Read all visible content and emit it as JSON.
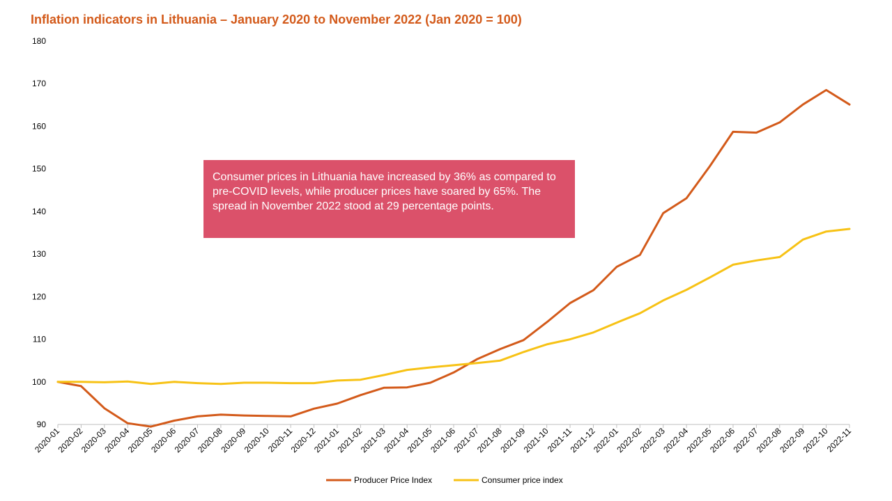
{
  "chart_data": {
    "type": "line",
    "title": "Inflation indicators in Lithuania – January 2020 to November 2022 (Jan 2020 = 100)",
    "xlabel": "",
    "ylabel": "",
    "ylim": [
      90,
      180
    ],
    "yticks": [
      90,
      100,
      110,
      120,
      130,
      140,
      150,
      160,
      170,
      180
    ],
    "grid": false,
    "legend_position": "bottom",
    "categories": [
      "2020-01",
      "2020-02",
      "2020-03",
      "2020-04",
      "2020-05",
      "2020-06",
      "2020-07",
      "2020-08",
      "2020-09",
      "2020-10",
      "2020-11",
      "2020-12",
      "2021-01",
      "2021-02",
      "2021-03",
      "2021-04",
      "2021-05",
      "2021-06",
      "2021-07",
      "2021-08",
      "2021-09",
      "2021-10",
      "2021-11",
      "2021-12",
      "2022-01",
      "2022-02",
      "2022-03",
      "2022-04",
      "2022-05",
      "2022-06",
      "2022-07",
      "2022-08",
      "2022-09",
      "2022-10",
      "2022-11"
    ],
    "series": [
      {
        "name": "Producer Price Index",
        "color": "#d35a1a",
        "values": [
          100,
          99,
          93.8,
          90.3,
          89.5,
          90.9,
          91.9,
          92.3,
          92.1,
          92,
          91.9,
          93.7,
          94.9,
          96.9,
          98.6,
          98.7,
          99.8,
          102.2,
          105.3,
          107.7,
          109.8,
          114,
          118.5,
          121.5,
          127,
          129.8,
          139.6,
          143.1,
          150.6,
          158.7,
          158.5,
          160.9,
          165.1,
          168.5,
          165.1
        ]
      },
      {
        "name": "Consumer price index",
        "color": "#f7c215",
        "values": [
          100,
          100,
          99.9,
          100.1,
          99.5,
          100,
          99.7,
          99.5,
          99.8,
          99.8,
          99.7,
          99.7,
          100.3,
          100.5,
          101.6,
          102.8,
          103.4,
          103.9,
          104.4,
          105,
          107,
          108.8,
          110,
          111.6,
          113.9,
          116.1,
          119.1,
          121.6,
          124.5,
          127.5,
          128.5,
          129.3,
          133.4,
          135.3,
          135.9
        ]
      }
    ]
  },
  "annotation": {
    "text": "Consumer prices in Lithuania have increased by 36% as compared to pre-COVID levels, while producer prices have soared by 65%. The spread in November 2022 stood at 29 percentage points."
  }
}
